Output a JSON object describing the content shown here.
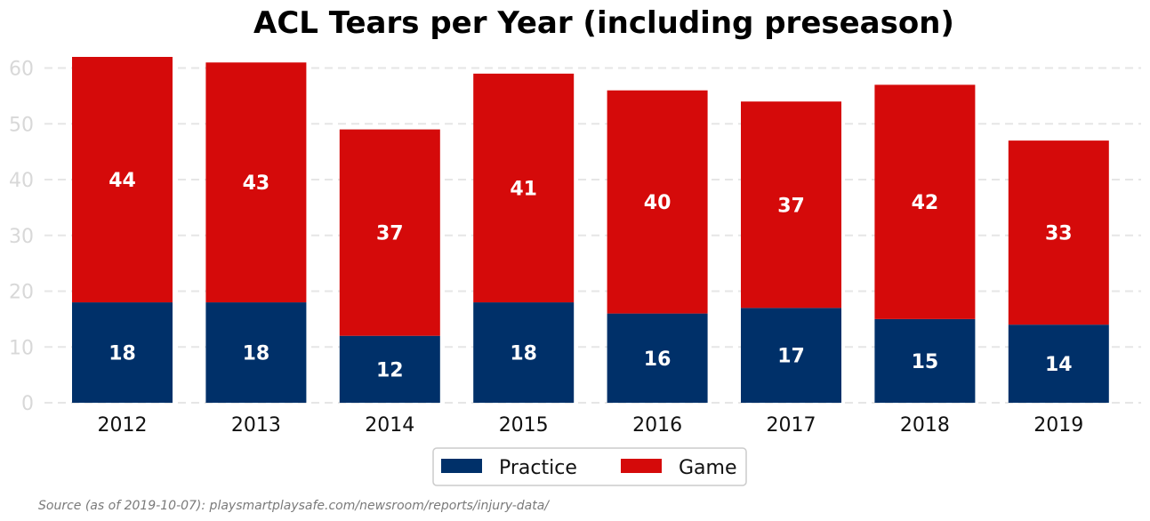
{
  "chart_data": {
    "type": "bar",
    "stacked": true,
    "title": "ACL Tears per Year (including preseason)",
    "categories": [
      "2012",
      "2013",
      "2014",
      "2015",
      "2016",
      "2017",
      "2018",
      "2019"
    ],
    "series": [
      {
        "name": "Practice",
        "color": "#003069",
        "values": [
          18,
          18,
          12,
          18,
          16,
          17,
          15,
          14
        ]
      },
      {
        "name": "Game",
        "color": "#d50a0a",
        "values": [
          44,
          43,
          37,
          41,
          40,
          37,
          42,
          33
        ]
      }
    ],
    "ylim": [
      0,
      62
    ],
    "yticks": [
      "0",
      "10",
      "20",
      "30",
      "40",
      "50",
      "60"
    ],
    "grid": true,
    "legend_position": "bottom-center"
  },
  "source": "Source (as of 2019-10-07): playsmartplaysafe.com/newsroom/reports/injury-data/"
}
